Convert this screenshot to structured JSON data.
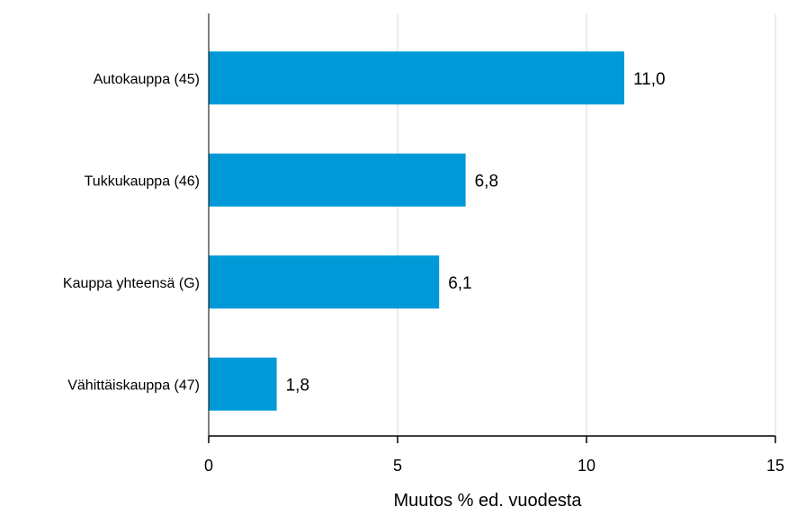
{
  "chart_data": {
    "type": "bar",
    "orientation": "horizontal",
    "categories": [
      "Autokauppa (45)",
      "Tukkukauppa (46)",
      "Kauppa yhteensä (G)",
      "Vähittäiskauppa (47)"
    ],
    "values": [
      11.0,
      6.8,
      6.1,
      1.8
    ],
    "value_labels": [
      "11,0",
      "6,8",
      "6,1",
      "1,8"
    ],
    "title": "",
    "xlabel": "Muutos % ed. vuodesta",
    "ylabel": "",
    "xlim": [
      0,
      15
    ],
    "xticks": [
      0,
      5,
      10,
      15
    ],
    "xtick_labels": [
      "0",
      "5",
      "10",
      "15"
    ],
    "grid": "vertical",
    "legend": "none",
    "bar_color": "#0099d8",
    "grid_color": "#d9d9d9",
    "axis_color": "#000000"
  }
}
